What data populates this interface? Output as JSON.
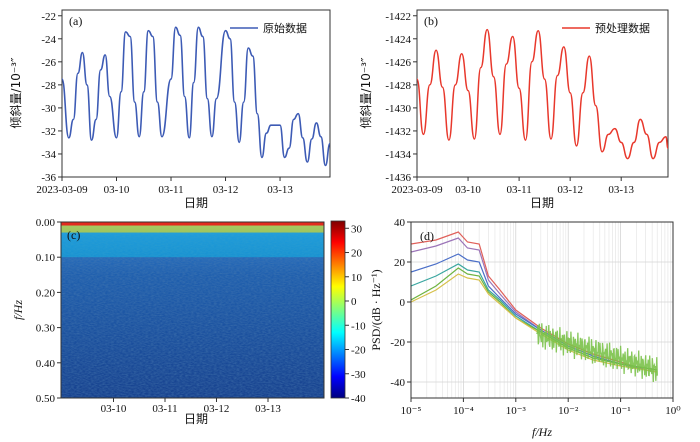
{
  "chart_data": [
    {
      "type": "line",
      "panel": "(a)",
      "legend": [
        "原始数据"
      ],
      "legend_position": "top-right",
      "color": "#3d5bb5",
      "xlabel": "日期",
      "ylabel": "倾斜量/10⁻³″",
      "x_ticks": [
        "2023-03-09",
        "03-10",
        "03-11",
        "03-12",
        "03-13"
      ],
      "y_ticks": [
        "-22",
        "-24",
        "-26",
        "-28",
        "-30",
        "-32",
        "-34",
        "-36"
      ],
      "xlim": [
        "2023-03-09 00:00",
        "2023-03-13 22:00"
      ],
      "ylim": [
        -36,
        -21.5
      ],
      "series": [
        {
          "x": [
            "03-09 00:00",
            "03-09 03:00",
            "03-09 05:00",
            "03-09 07:00",
            "03-09 09:00",
            "03-09 11:00",
            "03-09 13:00",
            "03-09 15:00",
            "03-09 17:00",
            "03-09 19:00",
            "03-09 21:00",
            "03-10 00:00",
            "03-10 02:00",
            "03-10 04:00",
            "03-10 06:00",
            "03-10 08:00",
            "03-10 10:00",
            "03-10 12:00",
            "03-10 14:00",
            "03-10 16:00",
            "03-10 18:00",
            "03-10 20:00",
            "03-11 00:00",
            "03-11 02:00",
            "03-11 04:00",
            "03-11 06:00",
            "03-11 08:00",
            "03-11 10:00",
            "03-11 12:00",
            "03-11 14:00",
            "03-11 16:00",
            "03-11 18:00",
            "03-11 20:00",
            "03-12 00:00",
            "03-12 02:00",
            "03-12 04:00",
            "03-12 06:00",
            "03-12 08:00",
            "03-12 10:00",
            "03-12 12:00",
            "03-12 14:00",
            "03-12 16:00",
            "03-12 18:00",
            "03-12 20:00",
            "03-13 00:00",
            "03-13 02:00",
            "03-13 04:00",
            "03-13 06:00",
            "03-13 08:00",
            "03-13 10:00",
            "03-13 12:00",
            "03-13 14:00",
            "03-13 16:00",
            "03-13 18:00",
            "03-13 20:00",
            "03-13 22:00"
          ],
          "y": [
            -27.5,
            -32.6,
            -31,
            -27,
            -25.2,
            -28,
            -32.8,
            -31,
            -26.7,
            -25.4,
            -29,
            -32.6,
            -28.6,
            -23.4,
            -23.8,
            -29.5,
            -32.5,
            -28.6,
            -23.3,
            -23.8,
            -29.5,
            -32.5,
            -27.5,
            -23,
            -23.7,
            -29,
            -32.6,
            -27.8,
            -23,
            -23.8,
            -29.2,
            -32.5,
            -29.2,
            -23.3,
            -24,
            -29.5,
            -33,
            -29.5,
            -24.8,
            -25.5,
            -30.5,
            -34.3,
            -32.2,
            -31.5,
            -31.5,
            -34.3,
            -33.5,
            -31,
            -30.5,
            -32.6,
            -34.7,
            -32.7,
            -31.3,
            -32.5,
            -35,
            -33.1
          ]
        }
      ]
    },
    {
      "type": "line",
      "panel": "(b)",
      "legend": [
        "预处理数据"
      ],
      "legend_position": "top-right",
      "color": "#e8382c",
      "xlabel": "日期",
      "ylabel": "倾斜量/10⁻³″",
      "x_ticks": [
        "2023-03-09",
        "03-10",
        "03-11",
        "03-12",
        "03-13"
      ],
      "y_ticks": [
        "-1422",
        "-1424",
        "-1426",
        "-1428",
        "-1430",
        "-1432",
        "-1434",
        "-1436"
      ],
      "xlim": [
        "2023-03-09 00:00",
        "2023-03-13 22:00"
      ],
      "ylim": [
        -1436,
        -1421.5
      ],
      "series": [
        {
          "x": [
            "03-09 00:00",
            "03-09 03:00",
            "03-09 06:00",
            "03-09 09:00",
            "03-09 12:00",
            "03-09 15:00",
            "03-09 18:00",
            "03-09 21:00",
            "03-10 00:00",
            "03-10 03:00",
            "03-10 06:00",
            "03-10 09:00",
            "03-10 12:00",
            "03-10 15:00",
            "03-10 18:00",
            "03-10 21:00",
            "03-11 00:00",
            "03-11 03:00",
            "03-11 06:00",
            "03-11 09:00",
            "03-11 12:00",
            "03-11 15:00",
            "03-11 18:00",
            "03-11 21:00",
            "03-12 00:00",
            "03-12 03:00",
            "03-12 06:00",
            "03-12 09:00",
            "03-12 12:00",
            "03-12 15:00",
            "03-12 18:00",
            "03-12 21:00",
            "03-13 00:00",
            "03-13 03:00",
            "03-13 06:00",
            "03-13 09:00",
            "03-13 12:00",
            "03-13 15:00",
            "03-13 18:00",
            "03-13 21:00",
            "03-13 22:00"
          ],
          "y": [
            -1427.5,
            -1432.3,
            -1428,
            -1425,
            -1428.2,
            -1432.8,
            -1428,
            -1425.3,
            -1428.5,
            -1432.7,
            -1426.5,
            -1423.2,
            -1427.3,
            -1432.3,
            -1426.2,
            -1423.8,
            -1428.3,
            -1432.8,
            -1426,
            -1423.3,
            -1427.5,
            -1432.7,
            -1427.2,
            -1424.7,
            -1428.7,
            -1433.3,
            -1428.7,
            -1425.5,
            -1429.8,
            -1433.8,
            -1432.3,
            -1431.8,
            -1433,
            -1434.4,
            -1433,
            -1431,
            -1432.3,
            -1434.4,
            -1433,
            -1432.5,
            -1433.5
          ]
        }
      ]
    },
    {
      "type": "heatmap",
      "panel": "(c)",
      "xlabel": "日期",
      "ylabel": "f/Hz",
      "x_ticks": [
        "03-10",
        "03-11",
        "03-12",
        "03-13"
      ],
      "y_ticks": [
        "0.00",
        "0.10",
        "0.20",
        "0.30",
        "0.40",
        "0.50"
      ],
      "ylim": [
        0,
        0.5
      ],
      "colorbar_ticks": [
        30,
        20,
        10,
        0,
        -10,
        -20,
        -30,
        -40
      ],
      "colorbar_range": [
        -40,
        33
      ],
      "colormap": "jet",
      "value_summary": {
        "f_0.00_0.01": 22,
        "f_0.01_0.03": 5,
        "f_0.03_0.10": -15,
        "f_0.10_0.20": -22,
        "f_0.20_0.50": -28
      }
    },
    {
      "type": "line",
      "panel": "(d)",
      "xlabel": "f/Hz",
      "ylabel": "PSD/(dB · Hz⁻¹)",
      "xscale": "log",
      "x_ticks": [
        "10⁻⁵",
        "10⁻⁴",
        "10⁻³",
        "10⁻²",
        "10⁻¹",
        "10⁰"
      ],
      "y_ticks": [
        "40",
        "20",
        "0",
        "-20",
        "-40"
      ],
      "xlim": [
        1e-05,
        1
      ],
      "ylim": [
        -48,
        40
      ],
      "grid": true,
      "series": [
        {
          "color": "#e0605a",
          "x": [
            1e-05,
            3e-05,
            8e-05,
            0.00012,
            0.0002,
            0.0003,
            0.0005,
            0.001,
            0.003,
            0.01,
            0.03,
            0.1,
            0.3,
            0.5
          ],
          "y": [
            29,
            31,
            35,
            30,
            29,
            13,
            6,
            -4,
            -13,
            -21,
            -26,
            -30,
            -34,
            -35
          ]
        },
        {
          "color": "#9b74b8",
          "x": [
            1e-05,
            3e-05,
            8e-05,
            0.00012,
            0.0002,
            0.0003,
            0.0005,
            0.001,
            0.003,
            0.01,
            0.03,
            0.1,
            0.3,
            0.5
          ],
          "y": [
            25,
            28,
            32,
            27,
            26,
            11,
            4,
            -5,
            -14,
            -22,
            -27,
            -31,
            -34,
            -35
          ]
        },
        {
          "color": "#4b6fc8",
          "x": [
            1e-05,
            3e-05,
            8e-05,
            0.00012,
            0.0002,
            0.0003,
            0.0005,
            0.001,
            0.003,
            0.01,
            0.03,
            0.1,
            0.3,
            0.5
          ],
          "y": [
            15,
            19,
            24,
            21,
            20,
            8,
            2,
            -6,
            -14,
            -22,
            -27,
            -31,
            -33,
            -34
          ]
        },
        {
          "color": "#3aa6a0",
          "x": [
            1e-05,
            3e-05,
            8e-05,
            0.00012,
            0.0002,
            0.0003,
            0.0005,
            0.001,
            0.003,
            0.01,
            0.03,
            0.1,
            0.3,
            0.5
          ],
          "y": [
            8,
            13,
            19,
            16,
            15,
            6,
            1,
            -7,
            -15,
            -23,
            -28,
            -31,
            -33,
            -34
          ]
        },
        {
          "color": "#6fb440",
          "x": [
            1e-05,
            3e-05,
            8e-05,
            0.00012,
            0.0002,
            0.0003,
            0.0005,
            0.001,
            0.003,
            0.01,
            0.03,
            0.1,
            0.3,
            0.5
          ],
          "y": [
            1,
            8,
            17,
            14,
            13,
            5,
            0,
            -8,
            -15,
            -23,
            -28,
            -31,
            -33,
            -34
          ]
        },
        {
          "color": "#d6c04a",
          "x": [
            1e-05,
            3e-05,
            8e-05,
            0.00012,
            0.0002,
            0.0003,
            0.0005,
            0.001,
            0.003,
            0.01,
            0.03,
            0.1,
            0.3,
            0.5
          ],
          "y": [
            0,
            6,
            14,
            12,
            11,
            4,
            -1,
            -8,
            -16,
            -24,
            -29,
            -32,
            -34,
            -35
          ]
        }
      ]
    }
  ]
}
